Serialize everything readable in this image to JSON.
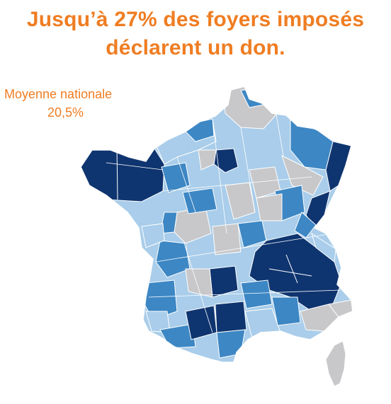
{
  "title": {
    "line1": "Jusqu’à 27% des foyers imposés",
    "line2": "déclarent un don."
  },
  "average": {
    "label": "Moyenne nationale",
    "value": "20,5%"
  },
  "map": {
    "region": "France",
    "colors": {
      "dark": "#0f3570",
      "mid": "#3d87c4",
      "light": "#a9cdea",
      "grey": "#c8c8cb",
      "border": "#ffffff"
    }
  },
  "colors": {
    "accent": "#ef7d22"
  }
}
